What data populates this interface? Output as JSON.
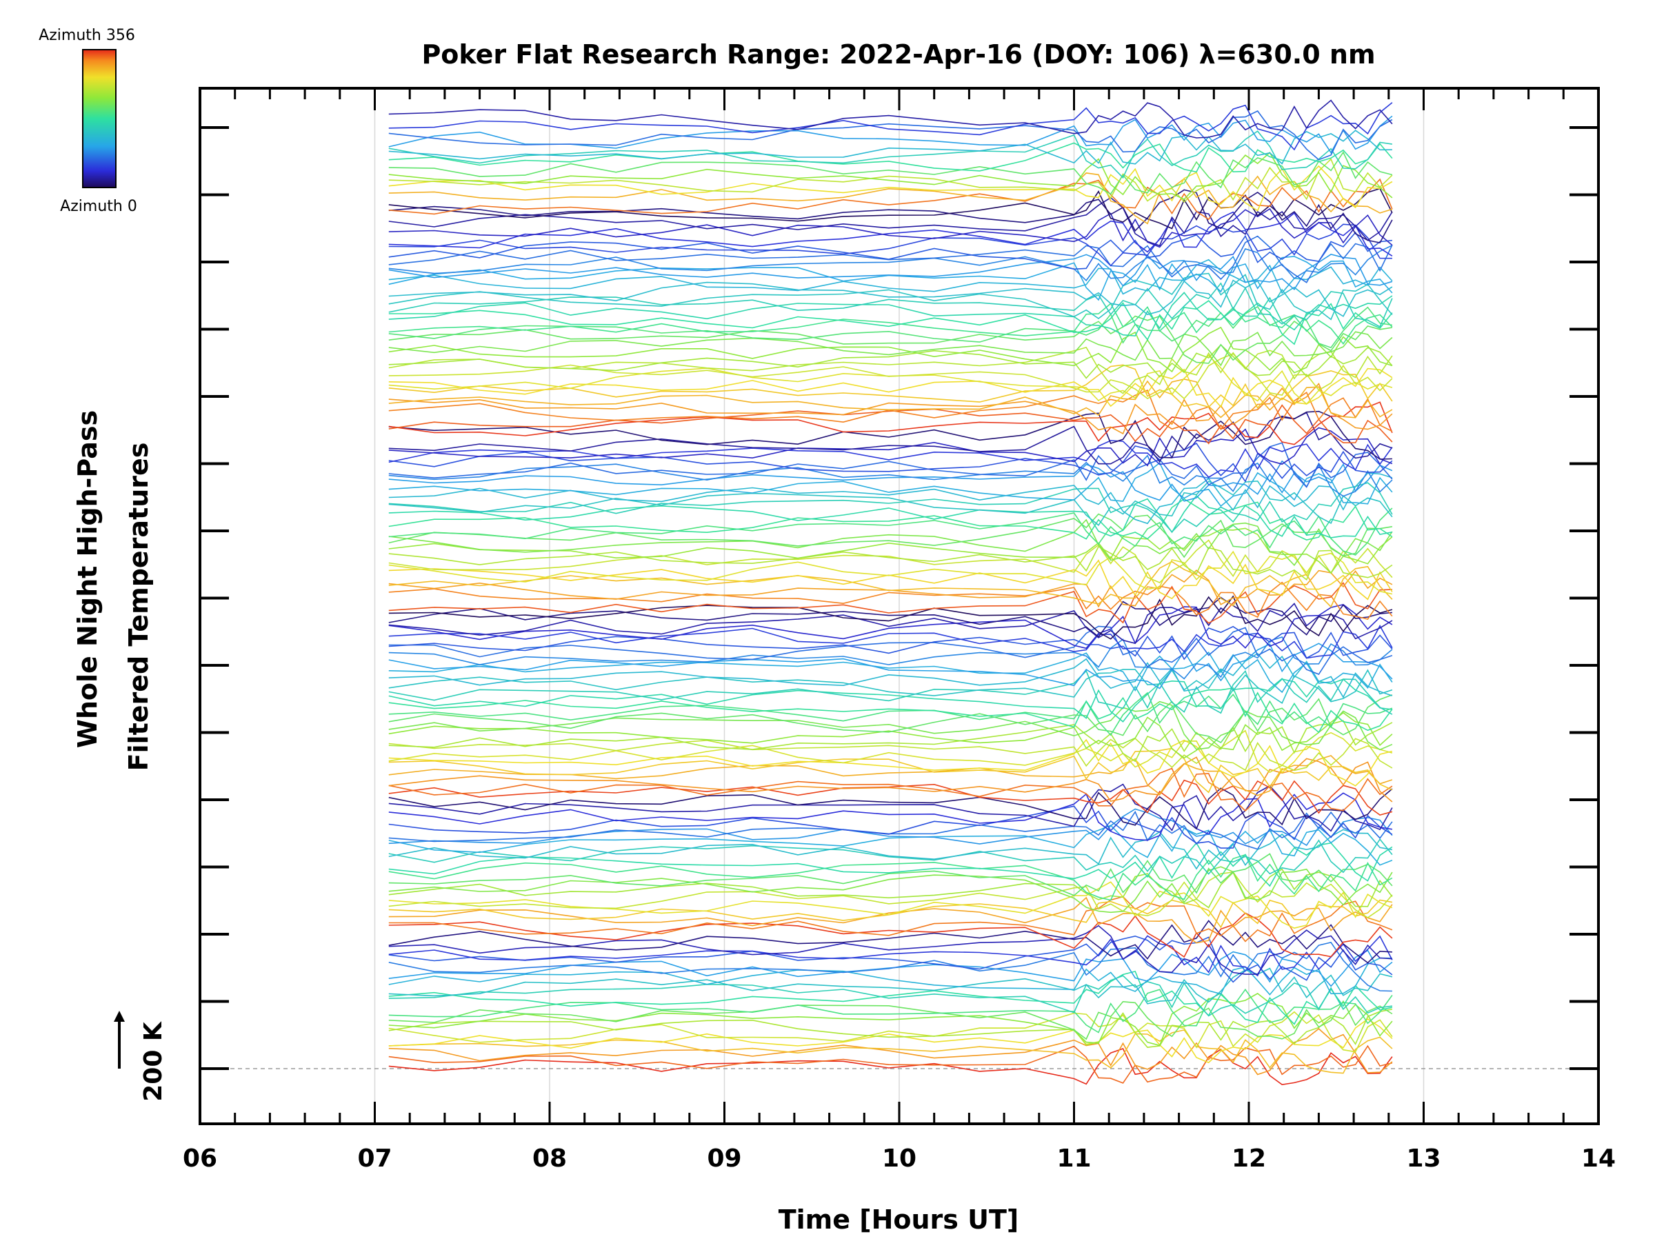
{
  "chart_data": {
    "type": "line",
    "title": "Poker Flat Research Range: 2022-Apr-16 (DOY: 106) λ=630.0 nm",
    "xlabel": "Time [Hours UT]",
    "ylabel_line1": "Whole Night High-Pass",
    "ylabel_line2": "Filtered Temperatures",
    "xlim": [
      6,
      14
    ],
    "x_ticks": [
      "06",
      "07",
      "08",
      "09",
      "10",
      "11",
      "12",
      "13",
      "14"
    ],
    "y_ticks": [
      0,
      1,
      2,
      3,
      4,
      5,
      6,
      7,
      8,
      9,
      10,
      11,
      12,
      13,
      14
    ],
    "gridlines_x": [
      7,
      8,
      9,
      10,
      11,
      12,
      13
    ],
    "ylim": [
      -0.8,
      15.2
    ],
    "series_offset_step_k": 200,
    "scale_bar_label": "200 K",
    "colorbar": {
      "label_top": "Azimuth 356",
      "label_bottom": "Azimuth 0",
      "min": 0,
      "max": 356
    },
    "data_window_hours": [
      7.08,
      12.85
    ],
    "series_count": 140,
    "band_pattern": "repeated azimuth sweeps; each series offset vertically",
    "color_bands": [
      {
        "from": 0.0,
        "to": 2.0,
        "azimuth_start": 0,
        "azimuth_end": 356
      },
      {
        "from": 2.0,
        "to": 4.0,
        "azimuth_start": 0,
        "azimuth_end": 356
      },
      {
        "from": 4.0,
        "to": 6.8,
        "azimuth_start": 0,
        "azimuth_end": 356
      },
      {
        "from": 6.8,
        "to": 9.5,
        "azimuth_start": 0,
        "azimuth_end": 356
      },
      {
        "from": 9.5,
        "to": 12.8,
        "azimuth_start": 0,
        "azimuth_end": 356
      },
      {
        "from": 12.8,
        "to": 14.2,
        "azimuth_start": 0,
        "azimuth_end": 356
      }
    ]
  }
}
